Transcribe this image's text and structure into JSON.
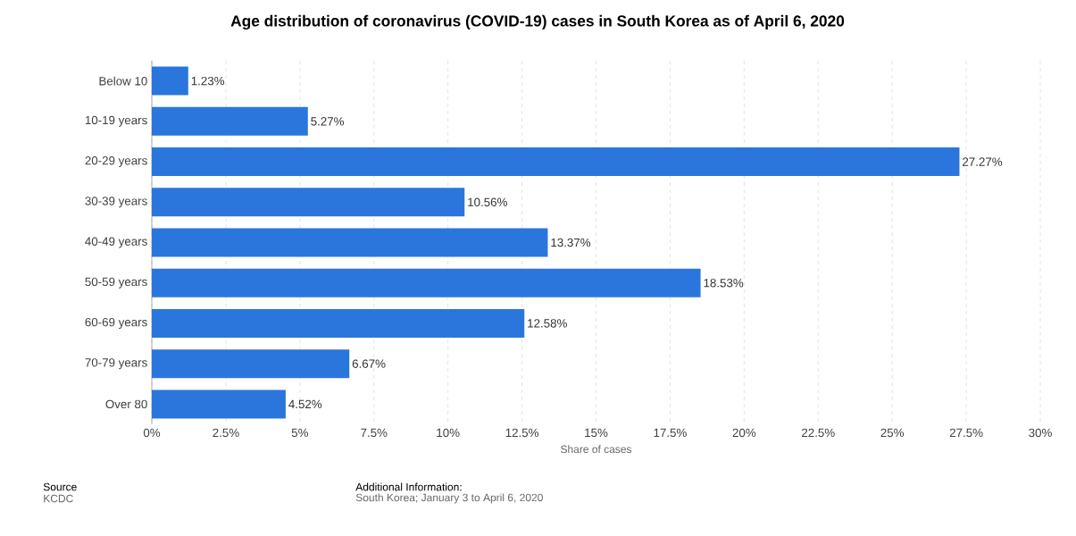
{
  "chart_data": {
    "type": "bar",
    "orientation": "horizontal",
    "title": "Age distribution of coronavirus (COVID-19) cases in South Korea as of April 6, 2020",
    "xlabel": "Share of cases",
    "categories": [
      "Below 10",
      "10-19 years",
      "20-29 years",
      "30-39 years",
      "40-49 years",
      "50-59 years",
      "60-69 years",
      "70-79 years",
      "Over 80"
    ],
    "values": [
      1.23,
      5.27,
      27.27,
      10.56,
      13.37,
      18.53,
      12.58,
      6.67,
      4.52
    ],
    "value_labels": [
      "1.23%",
      "5.27%",
      "27.27%",
      "10.56%",
      "13.37%",
      "18.53%",
      "12.58%",
      "6.67%",
      "4.52%"
    ],
    "color": "#2a76dd",
    "xlim": [
      0,
      30
    ],
    "xticks": [
      {
        "value": 0,
        "label": "0%"
      },
      {
        "value": 2.5,
        "label": "2.5%"
      },
      {
        "value": 5,
        "label": "5%"
      },
      {
        "value": 7.5,
        "label": "7.5%"
      },
      {
        "value": 10,
        "label": "10%"
      },
      {
        "value": 12.5,
        "label": "12.5%"
      },
      {
        "value": 15,
        "label": "15%"
      },
      {
        "value": 17.5,
        "label": "17.5%"
      },
      {
        "value": 20,
        "label": "20%"
      },
      {
        "value": 22.5,
        "label": "22.5%"
      },
      {
        "value": 25,
        "label": "25%"
      },
      {
        "value": 27.5,
        "label": "27.5%"
      },
      {
        "value": 30,
        "label": "30%"
      }
    ],
    "grid": "x",
    "annotations": [
      "Source",
      "KCDC",
      "Additional Information:",
      "South Korea; January 3 to April 6, 2020"
    ]
  }
}
